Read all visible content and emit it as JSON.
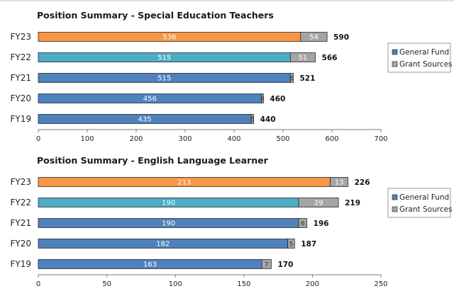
{
  "chart_data": [
    {
      "type": "bar",
      "orientation": "horizontal",
      "stacked": true,
      "title": "Position Summary - Special Education Teachers",
      "categories": [
        "FY23",
        "FY22",
        "FY21",
        "FY20",
        "FY19"
      ],
      "series": [
        {
          "name": "General Fund",
          "values": [
            536,
            515,
            515,
            456,
            435
          ]
        },
        {
          "name": "Grant Sources",
          "values": [
            54,
            51,
            6,
            4,
            5
          ]
        }
      ],
      "totals": [
        590,
        566,
        521,
        460,
        440
      ],
      "bar_colors": [
        "#F79646",
        "#4BACC6",
        "#4F81BD",
        "#4F81BD",
        "#4F81BD"
      ],
      "grant_color": "#A5A5A5",
      "xlim": [
        0,
        700
      ],
      "xticks": [
        0,
        100,
        200,
        300,
        400,
        500,
        600,
        700
      ],
      "grid": false,
      "legend": "right"
    },
    {
      "type": "bar",
      "orientation": "horizontal",
      "stacked": true,
      "title": "Position Summary - English Language Learner",
      "categories": [
        "FY23",
        "FY22",
        "FY21",
        "FY20",
        "FY19"
      ],
      "series": [
        {
          "name": "General Fund",
          "values": [
            213,
            190,
            190,
            182,
            163
          ]
        },
        {
          "name": "Grant Sources",
          "values": [
            13,
            29,
            6,
            5,
            7
          ]
        }
      ],
      "totals": [
        226,
        219,
        196,
        187,
        170
      ],
      "bar_colors": [
        "#F79646",
        "#4BACC6",
        "#4F81BD",
        "#4F81BD",
        "#4F81BD"
      ],
      "grant_color": "#A5A5A5",
      "xlim": [
        0,
        250
      ],
      "xticks": [
        0,
        50,
        100,
        150,
        200,
        250
      ],
      "grid": false,
      "legend": "right"
    }
  ],
  "colors": {
    "general_fund_legend": "#4F81BD",
    "grant_sources_legend": "#A5A5A5"
  }
}
